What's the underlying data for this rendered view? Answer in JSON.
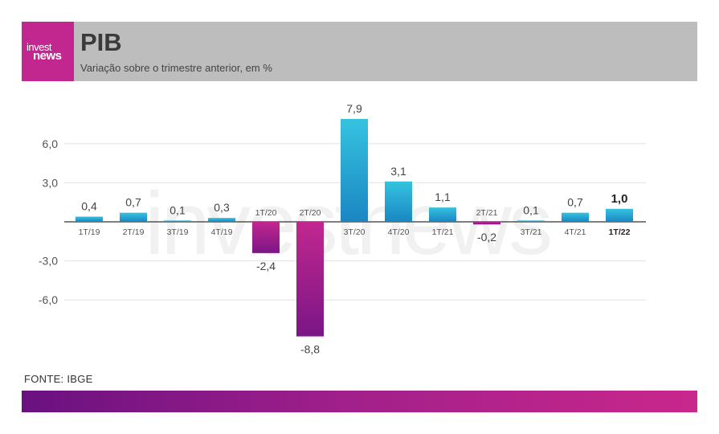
{
  "header": {
    "logo_line1": "invest",
    "logo_line2": "news",
    "title": "PIB",
    "subtitle": "Variação sobre o trimestre anterior, em %"
  },
  "watermark": "investnews",
  "source": "FONTE: IBGE",
  "colors": {
    "positive_top": "#35c3df",
    "positive_bottom": "#1a86c3",
    "negative_top": "#c2278f",
    "negative_bottom": "#7a1686",
    "brand": "#c2278f"
  },
  "chart_data": {
    "type": "bar",
    "title": "PIB",
    "subtitle": "Variação sobre o trimestre anterior, em %",
    "categories": [
      "1T/19",
      "2T/19",
      "3T/19",
      "4T/19",
      "1T/20",
      "2T/20",
      "3T/20",
      "4T/20",
      "1T/21",
      "2T/21",
      "3T/21",
      "4T/21",
      "1T/22"
    ],
    "values": [
      0.4,
      0.7,
      0.1,
      0.3,
      -2.4,
      -8.8,
      7.9,
      3.1,
      1.1,
      -0.2,
      0.1,
      0.7,
      1.0
    ],
    "value_labels": [
      "0,4",
      "0,7",
      "0,1",
      "0,3",
      "-2,4",
      "-8,8",
      "7,9",
      "3,1",
      "1,1",
      "-0,2",
      "0,1",
      "0,7",
      "1,0"
    ],
    "highlight_index": 12,
    "yticks": [
      6.0,
      3.0,
      -3.0,
      -6.0
    ],
    "ytick_labels": [
      "6,0",
      "3,0",
      "-3,0",
      "-6,0"
    ],
    "ylim": [
      -8.8,
      7.9
    ],
    "grid": true,
    "xlabel": "",
    "ylabel": ""
  }
}
